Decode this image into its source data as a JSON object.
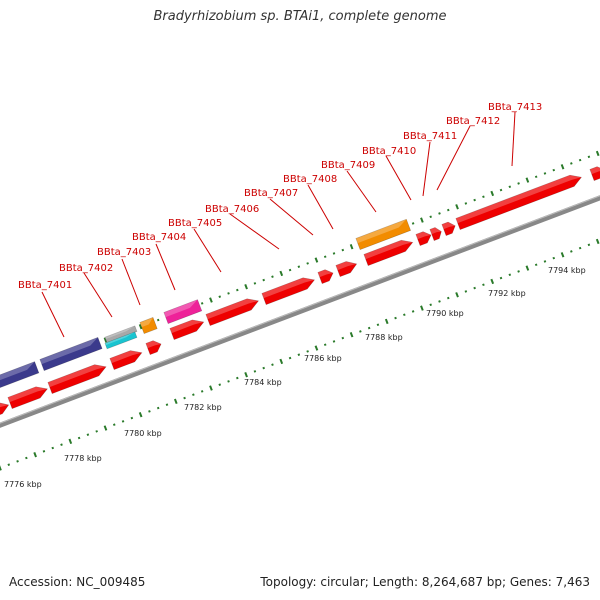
{
  "title": "Bradyrhizobium sp. BTAi1, complete genome",
  "accession": "Accession: NC_009485",
  "topology": "Topology: circular; Length: 8,264,687 bp; Genes: 7,463",
  "colors": {
    "forward_gene": "#ee0000",
    "reverse_gene": "#ee0000",
    "orange_gene": "#f28c00",
    "magenta_gene": "#ee2299",
    "navy_gene": "#3b3a8c",
    "grey_gene": "#a8a8a8",
    "cyan_gene": "#19c4d0",
    "backbone": "#888888",
    "tick_major": "#2a7a2a",
    "tick_minor": "#2a7a2a",
    "label": "#cc0000"
  },
  "kbp_labels": [
    "7776 kbp",
    "7778 kbp",
    "7780 kbp",
    "7782 kbp",
    "7784 kbp",
    "7786 kbp",
    "7788 kbp",
    "7790 kbp",
    "7792 kbp",
    "7794 kbp"
  ],
  "gene_labels": [
    "BBta_7401",
    "BBta_7402",
    "BBta_7403",
    "BBta_7404",
    "BBta_7405",
    "BBta_7406",
    "BBta_7407",
    "BBta_7408",
    "BBta_7409",
    "BBta_7410",
    "BBta_7411",
    "BBta_7412",
    "BBta_7413"
  ]
}
